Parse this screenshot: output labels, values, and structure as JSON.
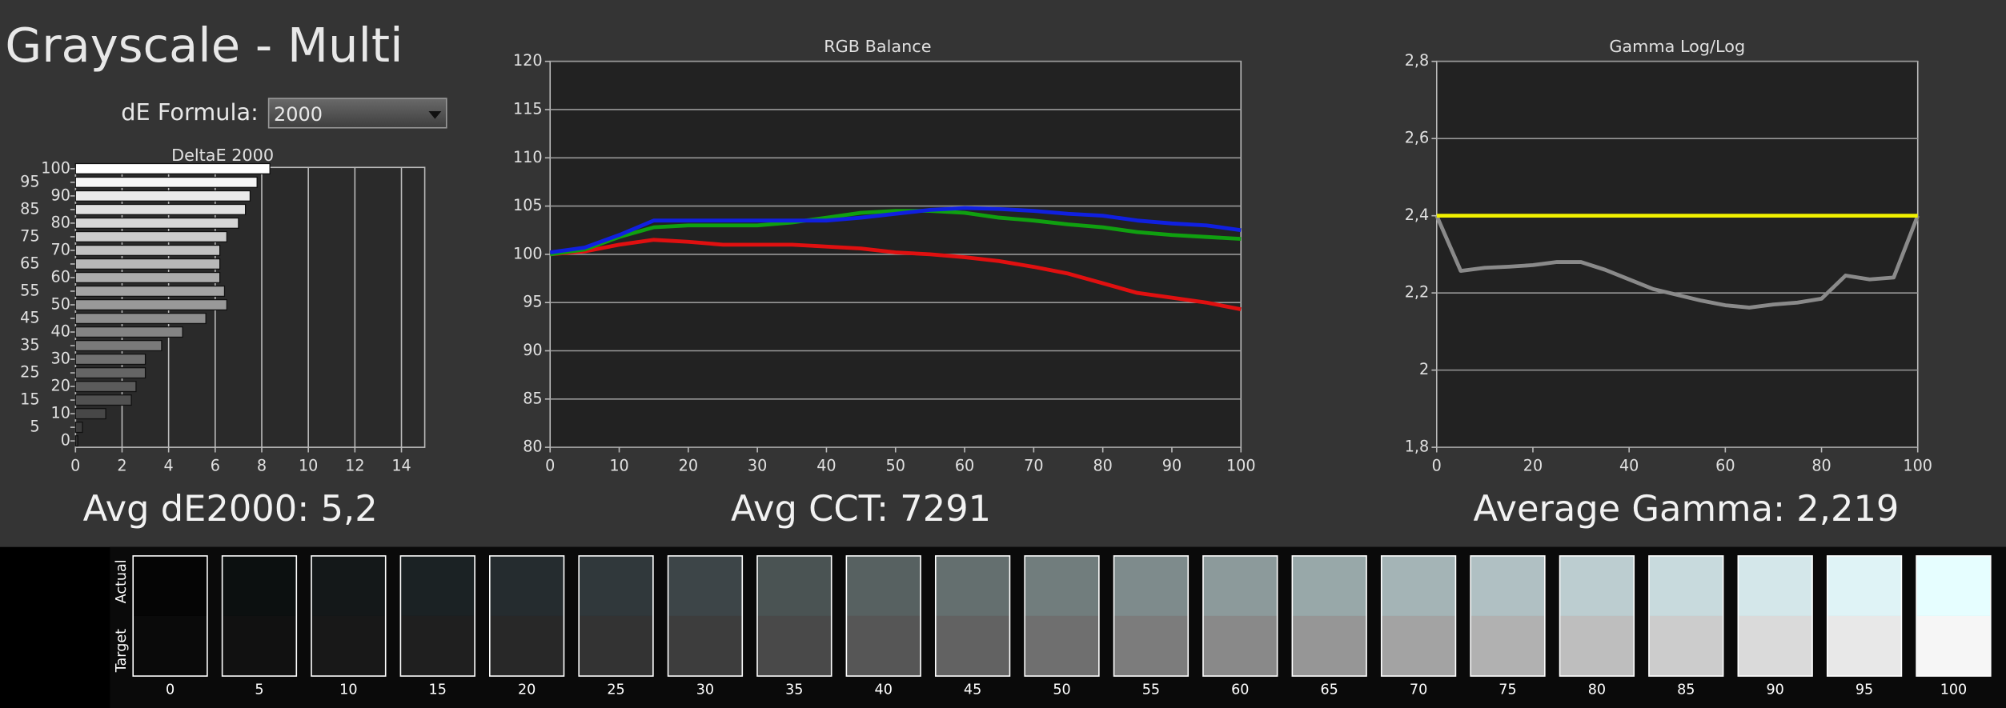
{
  "header": {
    "title": "Grayscale - Multi"
  },
  "controls": {
    "formula_label": "dE Formula:",
    "formula_value": "2000"
  },
  "chart_data": [
    {
      "type": "bar",
      "orientation": "horizontal",
      "title": "DeltaE 2000",
      "summary": "Avg dE2000: 5,2",
      "categories": [
        0,
        5,
        10,
        15,
        20,
        25,
        30,
        35,
        40,
        45,
        50,
        55,
        60,
        65,
        70,
        75,
        80,
        85,
        90,
        95,
        100
      ],
      "values": [
        0.1,
        0.3,
        1.3,
        2.4,
        2.6,
        3.0,
        3.0,
        3.7,
        4.6,
        5.6,
        6.5,
        6.4,
        6.2,
        6.2,
        6.2,
        6.5,
        7.0,
        7.3,
        7.5,
        7.8,
        8.35
      ],
      "xlim": [
        0,
        15
      ],
      "xticks": [
        0,
        2,
        4,
        6,
        8,
        10,
        12,
        14
      ],
      "grid": true
    },
    {
      "type": "line",
      "title": "RGB Balance",
      "summary": "Avg CCT: 7291",
      "x": [
        0,
        5,
        10,
        15,
        20,
        25,
        30,
        35,
        40,
        45,
        50,
        55,
        60,
        65,
        70,
        75,
        80,
        85,
        90,
        95,
        100
      ],
      "series": [
        {
          "color": "#e01010",
          "values": [
            100,
            100.3,
            101,
            101.5,
            101.3,
            101,
            101,
            101,
            100.8,
            100.6,
            100.2,
            100,
            99.7,
            99.3,
            98.7,
            98,
            97,
            96,
            95.5,
            95,
            94.3
          ]
        },
        {
          "color": "#10a010",
          "values": [
            100,
            100.5,
            101.8,
            102.8,
            103,
            103,
            103,
            103.3,
            103.8,
            104.3,
            104.5,
            104.5,
            104.3,
            103.8,
            103.5,
            103.1,
            102.8,
            102.3,
            102,
            101.8,
            101.6
          ]
        },
        {
          "color": "#1020e0",
          "values": [
            100.2,
            100.7,
            102,
            103.5,
            103.5,
            103.5,
            103.5,
            103.5,
            103.5,
            103.8,
            104.2,
            104.6,
            104.8,
            104.7,
            104.5,
            104.2,
            104,
            103.5,
            103.2,
            103,
            102.5
          ]
        }
      ],
      "xlim": [
        0,
        100
      ],
      "xticks": [
        0,
        10,
        20,
        30,
        40,
        50,
        60,
        70,
        80,
        90,
        100
      ],
      "ylim": [
        80,
        120
      ],
      "yticks": [
        80,
        85,
        90,
        95,
        100,
        105,
        110,
        115,
        120
      ],
      "grid": true
    },
    {
      "type": "line",
      "title": "Gamma Log/Log",
      "summary": "Average Gamma: 2,219",
      "x": [
        0,
        5,
        10,
        15,
        20,
        25,
        30,
        35,
        40,
        45,
        50,
        55,
        60,
        65,
        70,
        75,
        80,
        85,
        90,
        95,
        100
      ],
      "series": [
        {
          "color": "#8a8a8a",
          "values": [
            2.4,
            2.257,
            2.265,
            2.268,
            2.272,
            2.28,
            2.28,
            2.26,
            2.235,
            2.21,
            2.195,
            2.18,
            2.168,
            2.162,
            2.17,
            2.175,
            2.185,
            2.245,
            2.235,
            2.24,
            2.4
          ]
        },
        {
          "color": "#f0f000",
          "values": [
            2.4,
            2.4,
            2.4,
            2.4,
            2.4,
            2.4,
            2.4,
            2.4,
            2.4,
            2.4,
            2.4,
            2.4,
            2.4,
            2.4,
            2.4,
            2.4,
            2.4,
            2.4,
            2.4,
            2.4,
            2.4
          ]
        }
      ],
      "xlim": [
        0,
        100
      ],
      "xticks": [
        0,
        20,
        40,
        60,
        80,
        100
      ],
      "ylim": [
        1.8,
        2.8
      ],
      "yticks": [
        {
          "value": 1.8,
          "label": "1,8"
        },
        2,
        {
          "value": 2.2,
          "label": "2,2"
        },
        {
          "value": 2.4,
          "label": "2,4"
        },
        {
          "value": 2.6,
          "label": "2,6"
        },
        {
          "value": 2.8,
          "label": "2,8"
        }
      ],
      "grid": true
    }
  ],
  "swatches": {
    "actual_label": "Actual",
    "target_label": "Target",
    "items": [
      {
        "label": 0,
        "actual": "#050505",
        "target": "#0a0a0a"
      },
      {
        "label": 5,
        "actual": "#0c1010",
        "target": "#111111"
      },
      {
        "label": 10,
        "actual": "#141819",
        "target": "#181818"
      },
      {
        "label": 15,
        "actual": "#1b2224",
        "target": "#1f1f1f"
      },
      {
        "label": 20,
        "actual": "#252c2f",
        "target": "#282828"
      },
      {
        "label": 25,
        "actual": "#30383b",
        "target": "#333333"
      },
      {
        "label": 30,
        "actual": "#3d4548",
        "target": "#3d3d3d"
      },
      {
        "label": 35,
        "actual": "#4a5353",
        "target": "#494949"
      },
      {
        "label": 40,
        "actual": "#576161",
        "target": "#565656"
      },
      {
        "label": 45,
        "actual": "#646f6f",
        "target": "#626262"
      },
      {
        "label": 50,
        "actual": "#717d7d",
        "target": "#6f6f6f"
      },
      {
        "label": 55,
        "actual": "#7e8b8c",
        "target": "#7c7c7c"
      },
      {
        "label": 60,
        "actual": "#8c9a9b",
        "target": "#898989"
      },
      {
        "label": 65,
        "actual": "#98a8a9",
        "target": "#969696"
      },
      {
        "label": 70,
        "actual": "#a4b4b6",
        "target": "#a3a3a3"
      },
      {
        "label": 75,
        "actual": "#b0c0c3",
        "target": "#b1b1b1"
      },
      {
        "label": 80,
        "actual": "#bccdd0",
        "target": "#bebebe"
      },
      {
        "label": 85,
        "actual": "#c8dadd",
        "target": "#cccccc"
      },
      {
        "label": 90,
        "actual": "#d4e7ea",
        "target": "#dadada"
      },
      {
        "label": 95,
        "actual": "#dff3f6",
        "target": "#e8e8e8"
      },
      {
        "label": 100,
        "actual": "#e6feff",
        "target": "#f6f6f6"
      }
    ]
  }
}
